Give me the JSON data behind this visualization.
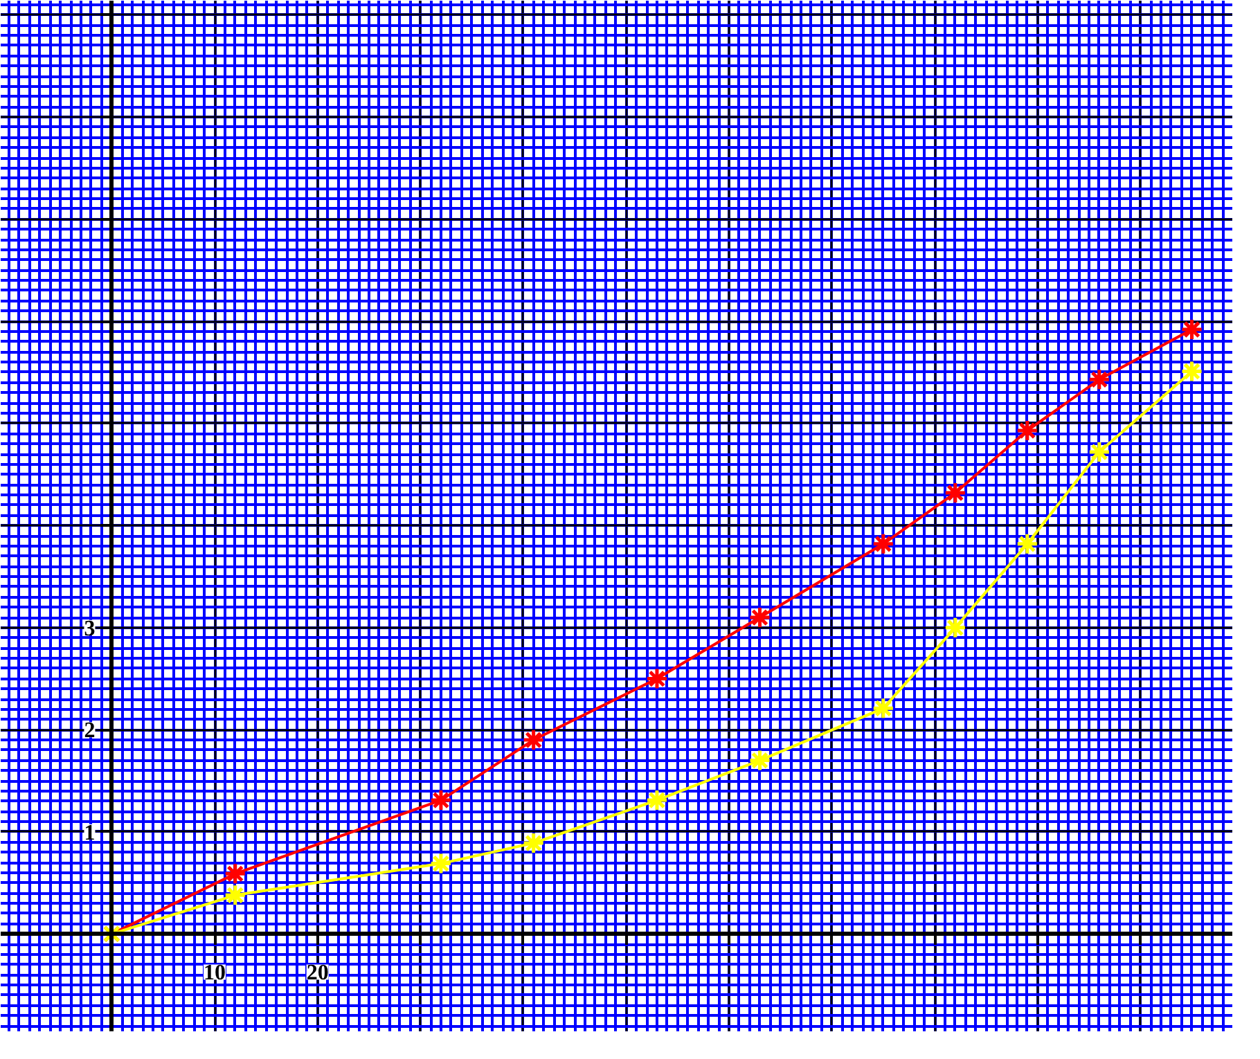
{
  "chart_data": {
    "type": "line",
    "xlim": [
      -10.8,
      109
    ],
    "ylim": [
      -0.96,
      9.14
    ],
    "xticks": [
      10,
      20,
      {
        "value": 30,
        "label": null
      },
      {
        "value": 40,
        "label": null
      },
      {
        "value": 50,
        "label": null
      },
      {
        "value": 60,
        "label": null
      },
      {
        "value": 70,
        "label": null
      },
      {
        "value": 80,
        "label": null
      },
      {
        "value": 90,
        "label": null
      },
      {
        "value": 100,
        "label": null
      }
    ],
    "yticks": [
      1,
      2,
      3,
      {
        "value": 4,
        "label": null
      },
      {
        "value": 5,
        "label": null
      },
      {
        "value": 6,
        "label": null
      },
      {
        "value": 7,
        "label": null
      },
      {
        "value": 8,
        "label": null
      },
      {
        "value": 9,
        "label": null
      }
    ],
    "grid": true,
    "marker": "cross",
    "line_style": "solid",
    "series": [
      {
        "color": "#ff0000",
        "x": [
          0,
          12,
          32,
          41,
          53,
          63,
          75,
          82,
          89,
          96,
          105
        ],
        "values": [
          0,
          0.59,
          1.31,
          1.9,
          2.5,
          3.1,
          3.82,
          4.32,
          4.93,
          5.43,
          5.92
        ]
      },
      {
        "color": "#ffff00",
        "x": [
          0,
          12,
          32,
          41,
          53,
          63,
          75,
          82,
          89,
          96,
          105
        ],
        "values": [
          0,
          0.38,
          0.69,
          0.89,
          1.31,
          1.7,
          2.21,
          3.0,
          3.82,
          4.72,
          5.51
        ]
      }
    ]
  }
}
